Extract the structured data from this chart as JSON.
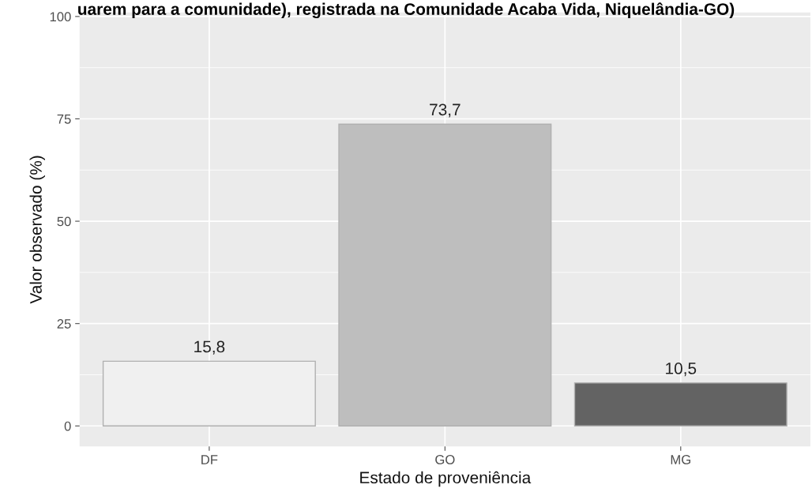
{
  "chart_data": {
    "type": "bar",
    "title": "uarem para a comunidade), registrada na Comunidade Acaba Vida, Niquelândia-GO)",
    "xlabel": "Estado de proveniência",
    "ylabel": "Valor observado (%)",
    "categories": [
      "DF",
      "GO",
      "MG"
    ],
    "values": [
      15.8,
      73.7,
      10.5
    ],
    "colors": [
      "#f0f0f0",
      "#bebebe",
      "#636363"
    ],
    "value_labels": [
      "15,8",
      "73,7",
      "10,5"
    ],
    "ylim": [
      -5,
      101
    ],
    "yticks": [
      0,
      25,
      50,
      75,
      100
    ],
    "grid": true
  }
}
